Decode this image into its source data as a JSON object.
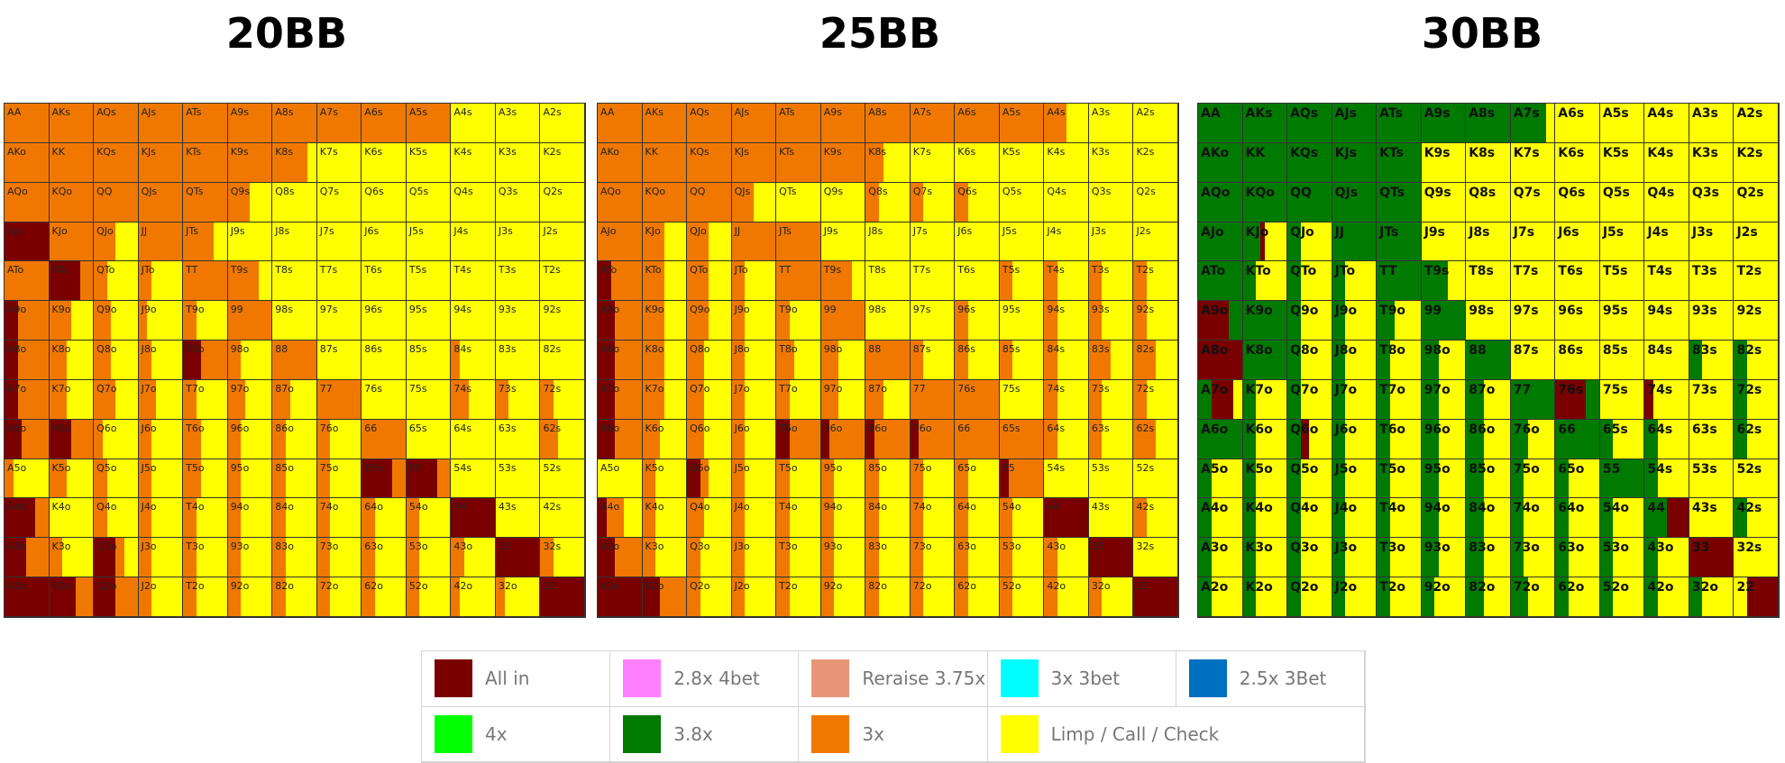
{
  "titles": [
    "20BB",
    "25BB",
    "30BB"
  ],
  "colors": {
    "allin": "#7a0000",
    "r4bet": "#ff80ff",
    "reraise": "#e8967a",
    "t3bet_cyan": "#00ffff",
    "t3bet_blue": "#0070c0",
    "x4": "#00ff00",
    "x38": "#007a00",
    "x3": "#f07800",
    "limp": "#ffff00"
  },
  "legend": [
    {
      "label": "All in",
      "color": "#7a0000"
    },
    {
      "label": "2.8x 4bet",
      "color": "#ff80ff"
    },
    {
      "label": "Reraise 3.75x",
      "color": "#e8967a"
    },
    {
      "label": "3x 3bet",
      "color": "#00ffff"
    },
    {
      "label": "2.5x 3Bet",
      "color": "#0070c0"
    },
    {
      "label": "4x",
      "color": "#00ff00"
    },
    {
      "label": "3.8x",
      "color": "#007a00"
    },
    {
      "label": "3x",
      "color": "#f07800"
    },
    {
      "label": "Limp / Call / Check",
      "color": "#ffff00"
    }
  ],
  "hands": [
    [
      "AA",
      "AKs",
      "AQs",
      "AJs",
      "ATs",
      "A9s",
      "A8s",
      "A7s",
      "A6s",
      "A5s",
      "A4s",
      "A3s",
      "A2s"
    ],
    [
      "AKo",
      "KK",
      "KQs",
      "KJs",
      "KTs",
      "K9s",
      "K8s",
      "K7s",
      "K6s",
      "K5s",
      "K4s",
      "K3s",
      "K2s"
    ],
    [
      "AQo",
      "KQo",
      "QQ",
      "QJs",
      "QTs",
      "Q9s",
      "Q8s",
      "Q7s",
      "Q6s",
      "Q5s",
      "Q4s",
      "Q3s",
      "Q2s"
    ],
    [
      "AJo",
      "KJo",
      "QJo",
      "JJ",
      "JTs",
      "J9s",
      "J8s",
      "J7s",
      "J6s",
      "J5s",
      "J4s",
      "J3s",
      "J2s"
    ],
    [
      "ATo",
      "KTo",
      "QTo",
      "JTo",
      "TT",
      "T9s",
      "T8s",
      "T7s",
      "T6s",
      "T5s",
      "T4s",
      "T3s",
      "T2s"
    ],
    [
      "A9o",
      "K9o",
      "Q9o",
      "J9o",
      "T9o",
      "99",
      "98s",
      "97s",
      "96s",
      "95s",
      "94s",
      "93s",
      "92s"
    ],
    [
      "A8o",
      "K8o",
      "Q8o",
      "J8o",
      "T8o",
      "98o",
      "88",
      "87s",
      "86s",
      "85s",
      "84s",
      "83s",
      "82s"
    ],
    [
      "A7o",
      "K7o",
      "Q7o",
      "J7o",
      "T7o",
      "97o",
      "87o",
      "77",
      "76s",
      "75s",
      "74s",
      "73s",
      "72s"
    ],
    [
      "A6o",
      "K6o",
      "Q6o",
      "J6o",
      "T6o",
      "96o",
      "86o",
      "76o",
      "66",
      "65s",
      "64s",
      "63s",
      "62s"
    ],
    [
      "A5o",
      "K5o",
      "Q5o",
      "J5o",
      "T5o",
      "95o",
      "85o",
      "75o",
      "65o",
      "55",
      "54s",
      "53s",
      "52s"
    ],
    [
      "A4o",
      "K4o",
      "Q4o",
      "J4o",
      "T4o",
      "94o",
      "84o",
      "74o",
      "64o",
      "54o",
      "44",
      "43s",
      "42s"
    ],
    [
      "A3o",
      "K3o",
      "Q3o",
      "J3o",
      "T3o",
      "93o",
      "83o",
      "73o",
      "63o",
      "53o",
      "43o",
      "33",
      "32s"
    ],
    [
      "A2o",
      "K2o",
      "Q2o",
      "J2o",
      "T2o",
      "92o",
      "82o",
      "72o",
      "62o",
      "52o",
      "42o",
      "32o",
      "22"
    ]
  ],
  "charts": [
    {
      "title": "20BB",
      "cells": [
        "O",
        "O",
        "O",
        "O",
        "O",
        "O",
        "O",
        "O",
        "O",
        "O",
        "Y",
        "Y",
        "Y",
        "O",
        "O",
        "O",
        "O",
        "O",
        "O",
        "O:0.8|Y:0.2",
        "Y",
        "Y",
        "Y",
        "Y",
        "Y",
        "Y",
        "O",
        "O",
        "O",
        "O",
        "O",
        "O:0.5|Y:0.5",
        "Y",
        "Y",
        "Y",
        "Y",
        "Y",
        "Y",
        "Y",
        "R",
        "O",
        "O:0.5|Y:0.5",
        "O",
        "O:0.7|Y:0.3",
        "Y",
        "Y",
        "Y",
        "Y",
        "Y",
        "Y",
        "Y",
        "Y",
        "O",
        "R:0.7|O:0.3",
        "O:0.3|Y:0.7",
        "O:0.3|Y:0.7",
        "O",
        "O:0.7|Y:0.3",
        "Y",
        "Y",
        "Y",
        "Y",
        "Y",
        "Y",
        "Y",
        "R:0.3|O:0.7",
        "O:0.5|Y:0.5",
        "O:0.4|Y:0.6",
        "O:0.2|Y:0.8",
        "O:0.3|Y:0.7",
        "O",
        "Y",
        "Y",
        "Y",
        "Y",
        "Y",
        "Y",
        "Y",
        "R:0.3|O:0.7",
        "O:0.4|Y:0.6",
        "O:0.4|Y:0.6",
        "O:0.3|Y:0.7",
        "R:0.4|O:0.6",
        "O:0.3|Y:0.7",
        "O",
        "Y",
        "Y",
        "Y",
        "O:0.2|Y:0.8",
        "Y",
        "Y",
        "R:0.3|O:0.7",
        "O:0.4|Y:0.6",
        "O:0.5|Y:0.5",
        "O:0.4|Y:0.6",
        "O:0.3|Y:0.7",
        "O:0.4|Y:0.6",
        "O:0.4|Y:0.6",
        "O",
        "Y",
        "Y",
        "O:0.4|Y:0.6",
        "O:0.3|Y:0.7",
        "O:0.3|Y:0.7",
        "R:0.4|O:0.6",
        "R:0.5|O:0.5",
        "O:0.2|Y:0.8",
        "O:0.3|Y:0.7",
        "O:0.4|Y:0.6",
        "O:0.3|Y:0.7",
        "O:0.3|Y:0.7",
        "O:0.3|Y:0.7",
        "O",
        "Y",
        "Y",
        "Y",
        "O:0.4|Y:0.6",
        "O:0.2|Y:0.8",
        "O:0.4|Y:0.6",
        "O:0.3|Y:0.7",
        "O:0.3|Y:0.7",
        "O:0.4|Y:0.6",
        "O:0.3|Y:0.7",
        "O:0.3|Y:0.7",
        "O:0.3|Y:0.7",
        "R:0.7|O:0.3",
        "R:0.7|O:0.3",
        "Y",
        "Y",
        "Y",
        "R:0.7|O:0.3",
        "Y",
        "O:0.3|Y:0.7",
        "O:0.3|Y:0.7",
        "O:0.3|Y:0.7",
        "O:0.3|Y:0.7",
        "O:0.3|Y:0.7",
        "O:0.3|Y:0.7",
        "O:0.3|Y:0.7",
        "O:0.3|Y:0.7",
        "R",
        "Y",
        "Y",
        "R:0.5|O:0.5",
        "O:0.3|Y:0.7",
        "R:0.5|O:0.2|Y:0.3",
        "O:0.3|Y:0.7",
        "O:0.3|Y:0.7",
        "O:0.3|Y:0.7",
        "O:0.3|Y:0.7",
        "O:0.3|Y:0.7",
        "O:0.3|Y:0.7",
        "O:0.3|Y:0.7",
        "O:0.3|Y:0.7",
        "R",
        "O:0.3|Y:0.7",
        "R",
        "R:0.6|O:0.4",
        "R:0.5|O:0.5",
        "O:0.3|Y:0.7",
        "O:0.3|Y:0.7",
        "O:0.3|Y:0.7",
        "O:0.3|Y:0.7",
        "O:0.3|Y:0.7",
        "O:0.3|Y:0.7",
        "O:0.3|Y:0.7",
        "O:0.2|Y:0.8",
        "O:0.2|Y:0.8",
        "R"
      ]
    },
    {
      "title": "25BB",
      "cells": [
        "O",
        "O",
        "O",
        "O",
        "O",
        "O",
        "O",
        "O",
        "O",
        "O",
        "O:0.5|Y:0.5",
        "Y",
        "Y",
        "O",
        "O",
        "O",
        "O",
        "O",
        "O",
        "O:0.4|Y:0.6",
        "Y",
        "Y",
        "Y",
        "Y",
        "Y",
        "Y",
        "O",
        "O",
        "O",
        "O:0.5|Y:0.5",
        "Y",
        "Y",
        "O:0.3|Y:0.7",
        "O:0.3|Y:0.7",
        "O:0.3|Y:0.7",
        "Y",
        "Y",
        "Y",
        "Y",
        "O",
        "O:0.5|Y:0.5",
        "O:0.5|Y:0.5",
        "O",
        "O",
        "Y",
        "Y",
        "Y",
        "Y",
        "Y",
        "Y",
        "Y",
        "Y",
        "R:0.3|O:0.7",
        "O:0.5|Y:0.5",
        "O:0.5|Y:0.5",
        "O:0.3|Y:0.7",
        "O",
        "O:0.7|Y:0.3",
        "Y",
        "Y",
        "Y",
        "O:0.3|Y:0.7",
        "O:0.3|Y:0.7",
        "O:0.3|Y:0.7",
        "O:0.3|Y:0.7",
        "R:0.4|O:0.6",
        "O:0.5|Y:0.5",
        "O:0.5|Y:0.5",
        "O:0.3|Y:0.7",
        "O:0.3|Y:0.7",
        "O",
        "Y",
        "Y",
        "O:0.3|Y:0.7",
        "Y",
        "O:0.3|Y:0.7",
        "O:0.3|Y:0.7",
        "O:0.3|Y:0.7",
        "R:0.4|O:0.6",
        "O:0.5|Y:0.5",
        "O:0.4|Y:0.6",
        "O:0.3|Y:0.7",
        "O:0.4|Y:0.6",
        "O:0.4|Y:0.6",
        "O",
        "O:0.3|Y:0.7",
        "O:0.3|Y:0.7",
        "O:0.3|Y:0.7",
        "O:0.3|Y:0.7",
        "O:0.5|Y:0.5",
        "O:0.5|Y:0.5",
        "R:0.4|O:0.6",
        "O:0.5|Y:0.5",
        "O:0.4|Y:0.6",
        "O:0.3|Y:0.7",
        "O:0.3|Y:0.7",
        "O:0.4|Y:0.6",
        "O:0.4|Y:0.6",
        "O",
        "O",
        "Y",
        "O:0.3|Y:0.7",
        "O:0.3|Y:0.7",
        "O:0.3|Y:0.7",
        "R:0.4|O:0.6",
        "O:0.4|Y:0.6",
        "O:0.4|Y:0.6",
        "O:0.3|Y:0.7",
        "R:0.3|O:0.7",
        "R:0.2|O:0.8",
        "R:0.2|O:0.8",
        "R:0.2|O:0.8",
        "O",
        "O",
        "O:0.3|Y:0.7",
        "O:0.3|Y:0.7",
        "O:0.5|Y:0.5",
        "Y",
        "O:0.3|Y:0.7",
        "R:0.3|O:0.2|Y:0.5",
        "O:0.3|Y:0.7",
        "O:0.3|Y:0.7",
        "O:0.3|Y:0.7",
        "O:0.3|Y:0.7",
        "O:0.3|Y:0.7",
        "O:0.3|Y:0.7",
        "R:0.2|O:0.8",
        "Y",
        "Y",
        "Y",
        "R:0.2|O:0.4|Y:0.4",
        "O:0.3|Y:0.7",
        "O:0.4|Y:0.6",
        "O:0.3|Y:0.7",
        "O:0.3|Y:0.7",
        "O:0.3|Y:0.7",
        "O:0.3|Y:0.7",
        "O:0.3|Y:0.7",
        "O:0.3|Y:0.7",
        "O:0.3|Y:0.7",
        "R",
        "Y",
        "O:0.3|Y:0.7",
        "R:0.4|O:0.6",
        "O:0.3|Y:0.7",
        "O:0.3|Y:0.7",
        "O:0.3|Y:0.7",
        "O:0.3|Y:0.7",
        "O:0.3|Y:0.7",
        "O:0.3|Y:0.7",
        "O:0.3|Y:0.7",
        "O:0.3|Y:0.7",
        "O:0.3|Y:0.7",
        "O:0.3|Y:0.7",
        "R",
        "Y",
        "R",
        "R:0.4|O:0.6",
        "O:0.3|Y:0.7",
        "O:0.3|Y:0.7",
        "O:0.3|Y:0.7",
        "O:0.3|Y:0.7",
        "O:0.3|Y:0.7",
        "O:0.3|Y:0.7",
        "O:0.3|Y:0.7",
        "O:0.3|Y:0.7",
        "O:0.3|Y:0.7",
        "O:0.3|Y:0.7",
        "R"
      ]
    },
    {
      "title": "30BB",
      "cells": [
        "G",
        "G",
        "G",
        "G",
        "G",
        "G",
        "G",
        "G:0.8|Y:0.2",
        "Y",
        "Y",
        "Y",
        "Y",
        "Y",
        "G",
        "G",
        "G",
        "G",
        "G",
        "Y",
        "Y",
        "Y",
        "Y",
        "Y",
        "Y",
        "Y",
        "Y",
        "G",
        "G",
        "G",
        "G",
        "G",
        "Y",
        "Y",
        "Y",
        "Y",
        "Y",
        "Y",
        "Y",
        "Y",
        "G",
        "G:0.4|R:0.1|Y:0.5",
        "G:0.3|Y:0.7",
        "G",
        "G",
        "Y",
        "Y",
        "Y",
        "Y",
        "Y",
        "Y",
        "Y",
        "Y",
        "G",
        "G:0.3|Y:0.7",
        "G:0.3|Y:0.7",
        "G:0.3|Y:0.7",
        "G",
        "G:0.6|Y:0.4",
        "Y",
        "Y",
        "Y",
        "Y",
        "Y",
        "Y",
        "Y",
        "R:0.7|G:0.3",
        "G",
        "G:0.3|Y:0.7",
        "G:0.3|Y:0.7",
        "G:0.4|Y:0.6",
        "G",
        "Y",
        "Y",
        "Y",
        "Y",
        "Y",
        "Y",
        "Y",
        "R",
        "G",
        "G:0.3|Y:0.7",
        "G:0.3|Y:0.7",
        "G:0.3|Y:0.7",
        "G:0.4|Y:0.6",
        "G",
        "Y",
        "Y",
        "Y",
        "Y",
        "G:0.3|Y:0.7",
        "G:0.3|Y:0.7",
        "G:0.3|R:0.5|Y:0.2",
        "G:0.3|Y:0.7",
        "G:0.3|Y:0.7",
        "G:0.3|Y:0.7",
        "G:0.3|Y:0.7",
        "G:0.4|Y:0.6",
        "G:0.4|Y:0.6",
        "G",
        "R:0.7|G:0.3",
        "Y",
        "R:0.2|Y:0.8",
        "Y",
        "G:0.3|Y:0.7",
        "G",
        "G:0.3|Y:0.7",
        "G:0.3|R:0.2|Y:0.5",
        "G:0.3|Y:0.7",
        "G:0.3|Y:0.7",
        "G:0.4|Y:0.6",
        "G:0.4|Y:0.6",
        "G:0.4|Y:0.6",
        "G",
        "G:0.3|Y:0.7",
        "G:0.3|Y:0.7",
        "Y",
        "G:0.3|Y:0.7",
        "G:0.3|Y:0.7",
        "G:0.3|Y:0.7",
        "G:0.3|Y:0.7",
        "G:0.3|Y:0.7",
        "G:0.3|Y:0.7",
        "G:0.4|Y:0.6",
        "G:0.4|Y:0.6",
        "G:0.3|Y:0.7",
        "G:0.3|Y:0.7",
        "G",
        "G:0.3|Y:0.7",
        "Y",
        "Y",
        "G:0.3|Y:0.7",
        "G:0.3|Y:0.7",
        "G:0.3|Y:0.7",
        "G:0.3|Y:0.7",
        "G:0.3|Y:0.7",
        "G:0.4|Y:0.6",
        "G:0.4|Y:0.6",
        "G:0.3|Y:0.7",
        "G:0.3|Y:0.7",
        "G:0.3|Y:0.7",
        "G:0.5|R:0.5",
        "Y",
        "G:0.3|Y:0.7",
        "G:0.3|Y:0.7",
        "G:0.3|Y:0.7",
        "G:0.3|Y:0.7",
        "G:0.3|Y:0.7",
        "G:0.3|Y:0.7",
        "G:0.4|Y:0.6",
        "G:0.4|Y:0.6",
        "G:0.3|Y:0.7",
        "G:0.3|Y:0.7",
        "G:0.3|Y:0.7",
        "G:0.3|Y:0.7",
        "R",
        "Y",
        "G:0.3|Y:0.7",
        "G:0.3|Y:0.7",
        "G:0.3|Y:0.7",
        "G:0.3|Y:0.7",
        "G:0.3|Y:0.7",
        "G:0.3|Y:0.7",
        "G:0.4|Y:0.6",
        "G:0.4|Y:0.6",
        "G:0.3|Y:0.7",
        "G:0.3|Y:0.7",
        "G:0.3|Y:0.7",
        "G:0.3|Y:0.7",
        "Y:0.3|R:0.7"
      ]
    }
  ]
}
